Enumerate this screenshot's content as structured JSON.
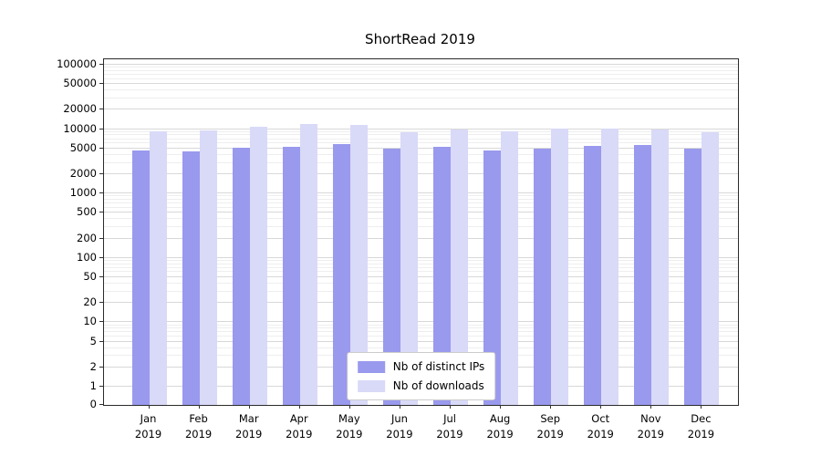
{
  "chart_data": {
    "type": "bar",
    "title": "ShortRead 2019",
    "xlabel": "",
    "ylabel": "",
    "months": [
      "Jan",
      "Feb",
      "Mar",
      "Apr",
      "May",
      "Jun",
      "Jul",
      "Aug",
      "Sep",
      "Oct",
      "Nov",
      "Dec"
    ],
    "year": "2019",
    "series": [
      {
        "name": "Nb of distinct IPs",
        "color": "#9999ee",
        "values": [
          4700,
          4500,
          5100,
          5300,
          5900,
          4900,
          5300,
          4700,
          5000,
          5500,
          5700,
          5000
        ]
      },
      {
        "name": "Nb of downloads",
        "color": "#d9d9f8",
        "values": [
          9200,
          9700,
          10800,
          12200,
          11500,
          9000,
          9900,
          9300,
          10300,
          10200,
          9900,
          8900
        ]
      }
    ],
    "y_ticks": [
      0,
      1,
      2,
      5,
      10,
      20,
      50,
      100,
      200,
      500,
      1000,
      2000,
      5000,
      10000,
      20000,
      50000,
      100000
    ],
    "scale": "log-with-zero",
    "grid": "horizontal, major and minor",
    "legend_position": "lower center"
  }
}
